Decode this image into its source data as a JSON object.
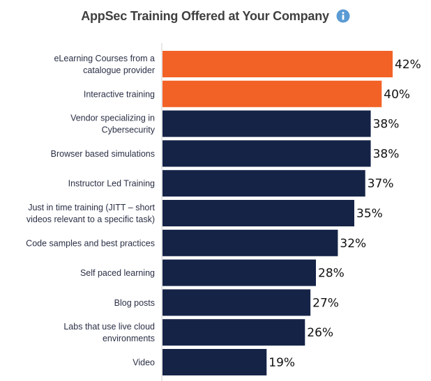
{
  "chart_data": {
    "type": "bar",
    "orientation": "horizontal",
    "title": "AppSec Training Offered at Your Company",
    "categories": [
      [
        "eLearning Courses from a",
        "catalogue provider"
      ],
      [
        "Interactive training"
      ],
      [
        "Vendor specializing in",
        "Cybersecurity"
      ],
      [
        "Browser based simulations"
      ],
      [
        "Instructor Led Training"
      ],
      [
        "Just in time training (JITT – short",
        "videos relevant to a specific task)"
      ],
      [
        "Code samples and best practices"
      ],
      [
        "Self paced learning"
      ],
      [
        "Blog posts"
      ],
      [
        "Labs that use live cloud",
        "environments"
      ],
      [
        "Video"
      ]
    ],
    "values": [
      42,
      40,
      38,
      38,
      37,
      35,
      32,
      28,
      27,
      26,
      19
    ],
    "value_labels": [
      "42%",
      "40%",
      "38%",
      "38%",
      "37%",
      "35%",
      "32%",
      "28%",
      "27%",
      "26%",
      "19%"
    ],
    "bar_colors": [
      "#f26226",
      "#f26226",
      "#152347",
      "#152347",
      "#152347",
      "#152347",
      "#152347",
      "#152347",
      "#152347",
      "#152347",
      "#152347"
    ],
    "xlim": [
      0,
      42
    ],
    "grid": false,
    "legend": "none"
  },
  "header": {
    "title": "AppSec Training Offered at Your Company",
    "info_icon": "info-icon",
    "info_icon_color": "#5b9bd5"
  }
}
